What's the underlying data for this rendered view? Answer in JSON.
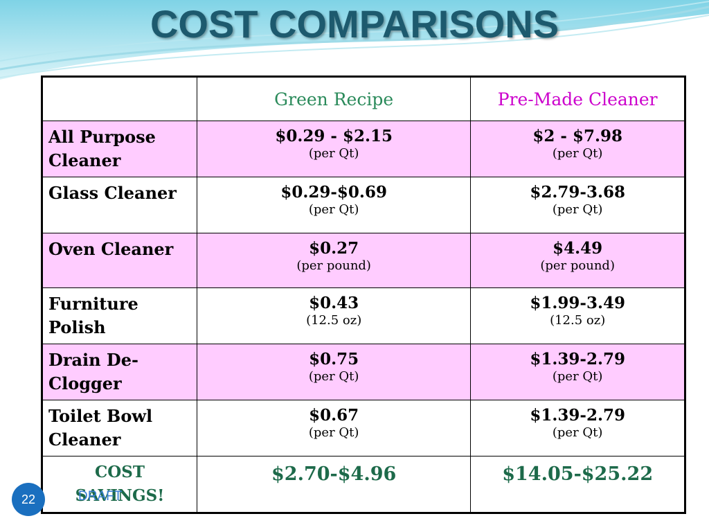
{
  "title": "COST COMPARISONS",
  "columns": [
    "",
    "Green Recipe",
    "Pre-Made Cleaner"
  ],
  "rows": [
    {
      "label": "All Purpose Cleaner",
      "green_price": "$0.29 - $2.15",
      "green_unit": "(per Qt)",
      "premade_price": "$2 - $7.98",
      "premade_unit": "(per Qt)"
    },
    {
      "label": "Glass Cleaner",
      "green_price": "$0.29-$0.69",
      "green_unit": "(per Qt)",
      "premade_price": "$2.79-3.68",
      "premade_unit": "(per Qt)"
    },
    {
      "label": "Oven Cleaner",
      "green_price": "$0.27",
      "green_unit": "(per pound)",
      "premade_price": "$4.49",
      "premade_unit": "(per pound)"
    },
    {
      "label": "Furniture Polish",
      "green_price": "$0.43",
      "green_unit": "(12.5 oz)",
      "premade_price": "$1.99-3.49",
      "premade_unit": "(12.5 oz)"
    },
    {
      "label": "Drain De-Clogger",
      "green_price": "$0.75",
      "green_unit": "(per Qt)",
      "premade_price": "$1.39-2.79",
      "premade_unit": "(per Qt)"
    },
    {
      "label": "Toilet Bowl Cleaner",
      "green_price": "$0.67",
      "green_unit": "(per Qt)",
      "premade_price": "$1.39-2.79",
      "premade_unit": "(per Qt)"
    }
  ],
  "savings": {
    "label": "COST SAVINGS!",
    "green": "$2.70-$4.96",
    "premade": "$14.05-$25.22"
  },
  "slide_number": "22",
  "watermark": "DRAFT",
  "colors": {
    "title": "#1d5a6e",
    "pink_row": "#ffccff",
    "green_header": "#2a8a5a",
    "pink_header": "#cc00cc",
    "savings": "#1d6a4a",
    "slide_badge": "#1a6fbf"
  }
}
